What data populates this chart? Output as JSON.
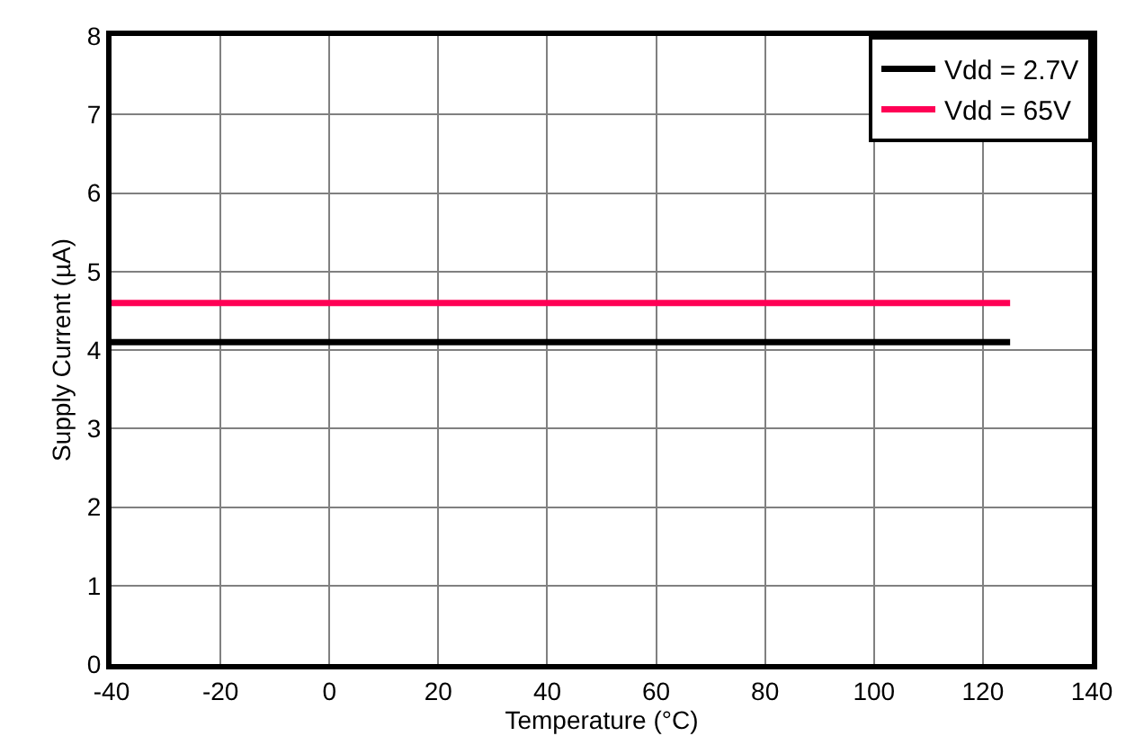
{
  "chart_data": {
    "type": "line",
    "xlabel": "Temperature (°C)",
    "ylabel": "Supply Current (µA)",
    "x": [
      -40,
      125
    ],
    "series": [
      {
        "name": "Vdd = 2.7V",
        "color": "#000000",
        "values": [
          4.1,
          4.1
        ]
      },
      {
        "name": "Vdd = 65V",
        "color": "#ff0055",
        "values": [
          4.6,
          4.6
        ]
      }
    ],
    "xlim": [
      -40,
      140
    ],
    "xticks": [
      -40,
      -20,
      0,
      20,
      40,
      60,
      80,
      100,
      120,
      140
    ],
    "ylim": [
      0,
      8
    ],
    "yticks": [
      0,
      1,
      2,
      3,
      4,
      5,
      6,
      7,
      8
    ],
    "grid": true,
    "legend": "top right",
    "marker": "none",
    "line_style": "solid"
  }
}
